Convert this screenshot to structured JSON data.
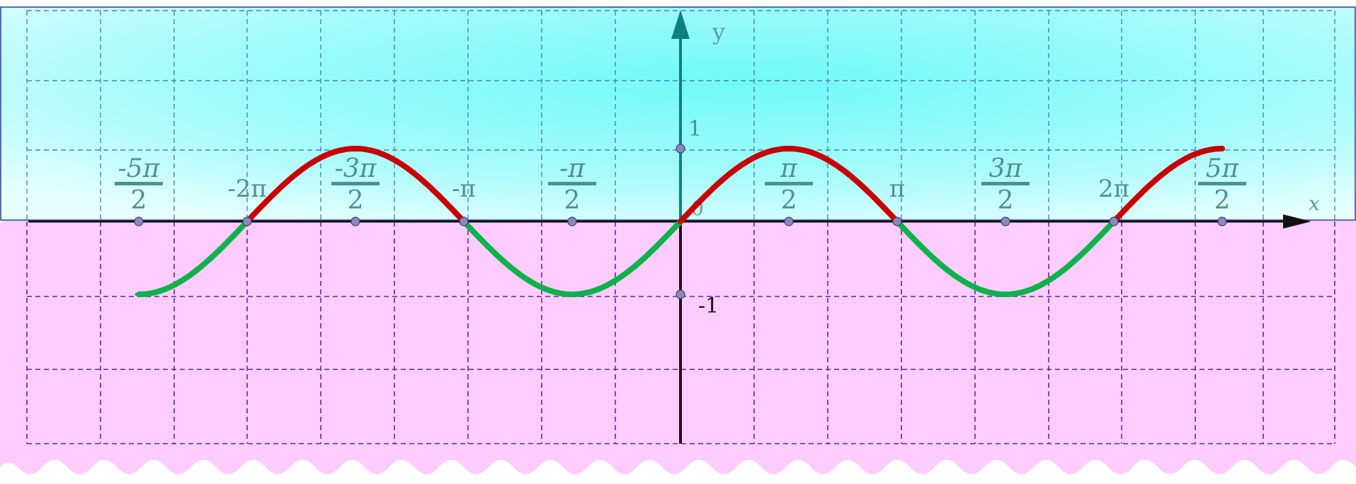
{
  "colors": {
    "upper_band": "#7ffcfc",
    "lower_band": "#ffccff",
    "positive_arc": "#c80000",
    "negative_arc": "#0db24b",
    "y_axis": "#117f7f",
    "x_axis": "#111111",
    "grid_upper": "#4a86b0",
    "grid_lower": "#5a2a9a",
    "label_teal": "#4f8f8f"
  },
  "chart_data": {
    "type": "line",
    "function": "sin",
    "x": [
      -7.854,
      -7.069,
      -6.283,
      -5.498,
      -4.712,
      -3.927,
      -3.142,
      -2.356,
      -1.571,
      -0.785,
      0,
      0.785,
      1.571,
      2.356,
      3.142,
      3.927,
      4.712,
      5.498,
      6.283,
      7.069,
      7.854
    ],
    "y": [
      -1,
      -0.707,
      0,
      0.707,
      1,
      0.707,
      0,
      -0.707,
      -1,
      -0.707,
      0,
      0.707,
      1,
      0.707,
      0,
      -0.707,
      -1,
      -0.707,
      0,
      0.707,
      1
    ],
    "xlim": [
      -9.8,
      9.3
    ],
    "ylim": [
      -3.1,
      3.0
    ],
    "xlabel": "x",
    "ylabel": "y",
    "origin_label": "0",
    "grid": true,
    "x_tick_labels": [
      {
        "value": -7.854,
        "num": "-5π",
        "den": "2"
      },
      {
        "value": -6.283,
        "text": "-2π"
      },
      {
        "value": -4.712,
        "num": "-3π",
        "den": "2"
      },
      {
        "value": -3.142,
        "text": "-π"
      },
      {
        "value": -1.571,
        "num": "-π",
        "den": "2"
      },
      {
        "value": 1.571,
        "num": "π",
        "den": "2"
      },
      {
        "value": 3.142,
        "text": "π"
      },
      {
        "value": 4.712,
        "num": "3π",
        "den": "2"
      },
      {
        "value": 6.283,
        "text": "2π"
      },
      {
        "value": 7.854,
        "num": "5π",
        "den": "2"
      }
    ],
    "y_tick_labels": [
      {
        "value": 1,
        "text": "1"
      },
      {
        "value": -1,
        "text": "-1"
      }
    ]
  }
}
